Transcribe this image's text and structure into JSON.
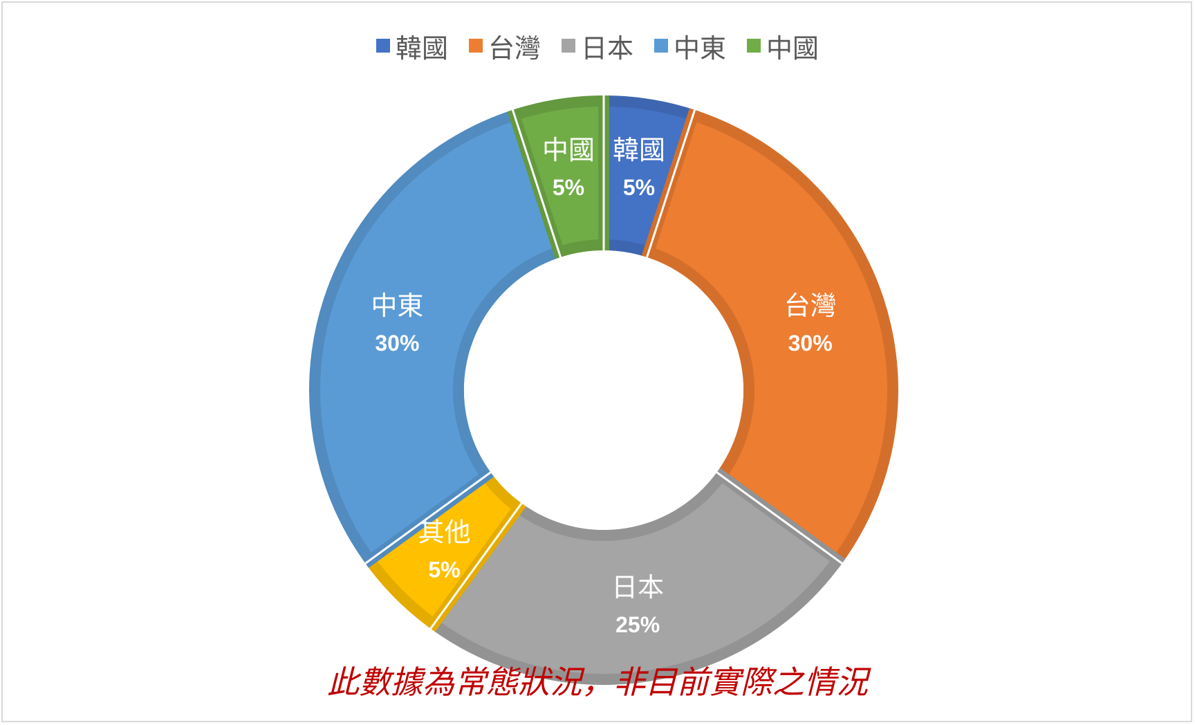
{
  "chart_data": {
    "type": "pie",
    "donut": true,
    "slices": [
      {
        "label": "韓國",
        "value": 5,
        "pct_label": "5%",
        "color": "#4472C4",
        "stroke": "#3E66B0"
      },
      {
        "label": "台灣",
        "value": 30,
        "pct_label": "30%",
        "color": "#ED7D31",
        "stroke": "#D46F2B"
      },
      {
        "label": "日本",
        "value": 25,
        "pct_label": "25%",
        "color": "#A5A5A5",
        "stroke": "#939393"
      },
      {
        "label": "其他",
        "value": 5,
        "pct_label": "5%",
        "color": "#FFC000",
        "stroke": "#E5AC00"
      },
      {
        "label": "中東",
        "value": 30,
        "pct_label": "30%",
        "color": "#5B9BD5",
        "stroke": "#518BBF"
      },
      {
        "label": "中國",
        "value": 5,
        "pct_label": "5%",
        "color": "#70AD47",
        "stroke": "#64993F"
      }
    ],
    "legend": [
      "韓國",
      "台灣",
      "日本",
      "中東",
      "中國"
    ],
    "legend_placement": "top"
  },
  "note": "此數據為常態狀況，非目前實際之情況"
}
